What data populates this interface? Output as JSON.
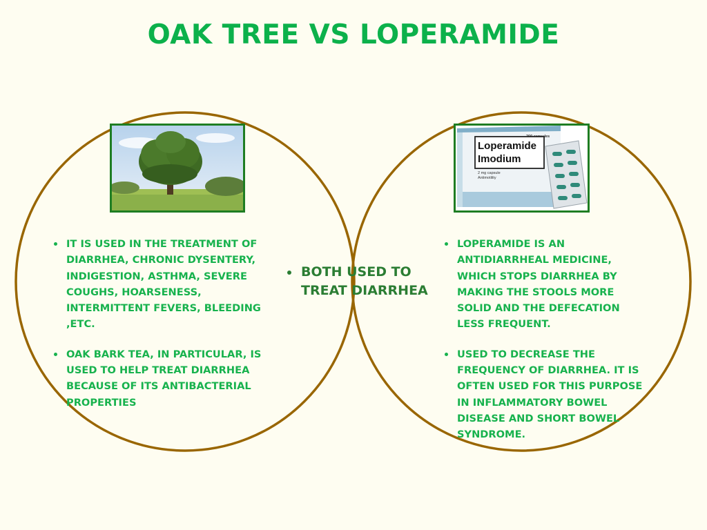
{
  "title": "OAK TREE VS LOPERAMIDE",
  "colors": {
    "title": "#0cb14b",
    "circle_stroke": "#996600",
    "text_green": "#17b24d",
    "center_text": "#2b7d33",
    "photo_border": "#1e7d22",
    "background": "#fefdf1"
  },
  "left": {
    "image": "oak-tree-photo",
    "points": [
      "IT IS USED IN THE TREATMENT OF DIARRHEA, CHRONIC DYSENTERY, INDIGESTION, ASTHMA, SEVERE COUGHS, HOARSENESS, INTERMITTENT FEVERS, BLEEDING ,ETC.",
      "OAK BARK TEA, IN PARTICULAR, IS USED TO HELP TREAT DIARRHEA BECAUSE OF ITS ANTIBACTERIAL PROPERTIES"
    ]
  },
  "center": {
    "points": [
      "BOTH USED TO TREAT DIARRHEA"
    ]
  },
  "right": {
    "image": "loperamide-package-photo",
    "package": {
      "count": "200 capsules",
      "name1": "Loperamide",
      "name2": "Imodium",
      "dose": "2 mg capsule",
      "class": "Antimotility"
    },
    "points": [
      "LOPERAMIDE IS AN ANTIDIARRHEAL MEDICINE, WHICH STOPS DIARRHEA BY MAKING THE STOOLS MORE SOLID AND THE DEFECATION LESS FREQUENT.",
      "USED TO DECREASE THE FREQUENCY OF DIARRHEA. IT IS OFTEN USED FOR THIS PURPOSE IN INFLAMMATORY BOWEL DISEASE AND SHORT BOWEL SYNDROME."
    ]
  }
}
